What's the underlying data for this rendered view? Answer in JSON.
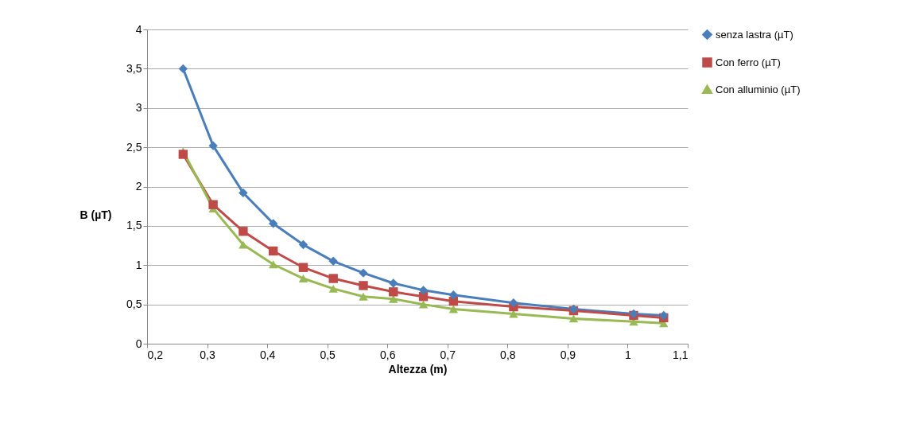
{
  "chart_data": {
    "type": "line",
    "xlabel": "Altezza (m)",
    "ylabel": "B (µT)",
    "x": [
      0.26,
      0.31,
      0.36,
      0.41,
      0.46,
      0.51,
      0.56,
      0.61,
      0.66,
      0.71,
      0.81,
      0.91,
      1.01,
      1.06
    ],
    "series": [
      {
        "name": "senza lastra (µT)",
        "color": "#4a7ebb",
        "marker": "diamond",
        "values": [
          3.5,
          2.52,
          1.92,
          1.53,
          1.26,
          1.05,
          0.9,
          0.77,
          0.68,
          0.62,
          0.52,
          0.44,
          0.38,
          0.36
        ]
      },
      {
        "name": "Con ferro (µT)",
        "color": "#be4b48",
        "marker": "square",
        "values": [
          2.41,
          1.77,
          1.43,
          1.18,
          0.97,
          0.83,
          0.74,
          0.66,
          0.6,
          0.54,
          0.47,
          0.42,
          0.36,
          0.33
        ]
      },
      {
        "name": "Con alluminio (µT)",
        "color": "#98b954",
        "marker": "triangle",
        "values": [
          2.45,
          1.72,
          1.26,
          1.01,
          0.83,
          0.7,
          0.6,
          0.57,
          0.5,
          0.44,
          0.38,
          0.32,
          0.28,
          0.26
        ]
      }
    ],
    "xlim": [
      0.2,
      1.1
    ],
    "xticks": [
      {
        "value": 0.2,
        "label": "0,2"
      },
      {
        "value": 0.3,
        "label": "0,3"
      },
      {
        "value": 0.4,
        "label": "0,4"
      },
      {
        "value": 0.5,
        "label": "0,5"
      },
      {
        "value": 0.6,
        "label": "0,6"
      },
      {
        "value": 0.7,
        "label": "0,7"
      },
      {
        "value": 0.8,
        "label": "0,8"
      },
      {
        "value": 0.9,
        "label": "0,9"
      },
      1,
      {
        "value": 1.1,
        "label": "1,1"
      }
    ],
    "ylim": [
      0,
      4
    ],
    "yticks": [
      0,
      {
        "value": 0.5,
        "label": "0,5"
      },
      1,
      {
        "value": 1.5,
        "label": "1,5"
      },
      2,
      {
        "value": 2.5,
        "label": "2,5"
      },
      3,
      {
        "value": 3.5,
        "label": "3,5"
      },
      4
    ],
    "grid": "y",
    "legend": "right",
    "line_style": "solid"
  }
}
